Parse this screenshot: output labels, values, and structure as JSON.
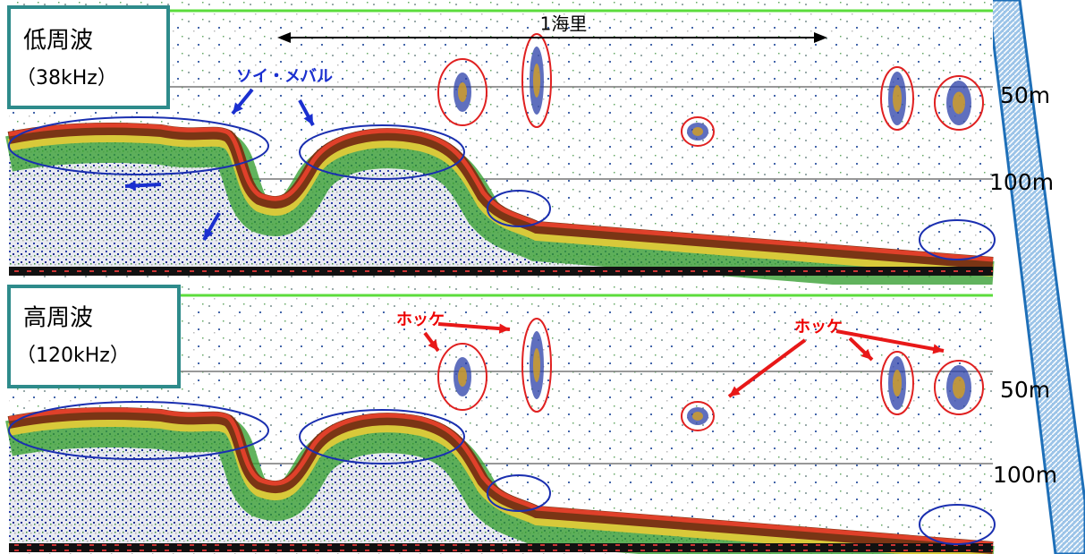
{
  "panels": [
    {
      "title": "低周波",
      "frequency": "（38kHz）",
      "depth_labels": [
        "50m",
        "100m"
      ]
    },
    {
      "title": "高周波",
      "frequency": "（120kHz）",
      "depth_labels": [
        "50m",
        "100m"
      ]
    }
  ],
  "annotations": {
    "scale": "1海里",
    "species_top": "ソイ・メバル",
    "species_bottom": [
      "ホッケ",
      "ホッケ"
    ]
  }
}
